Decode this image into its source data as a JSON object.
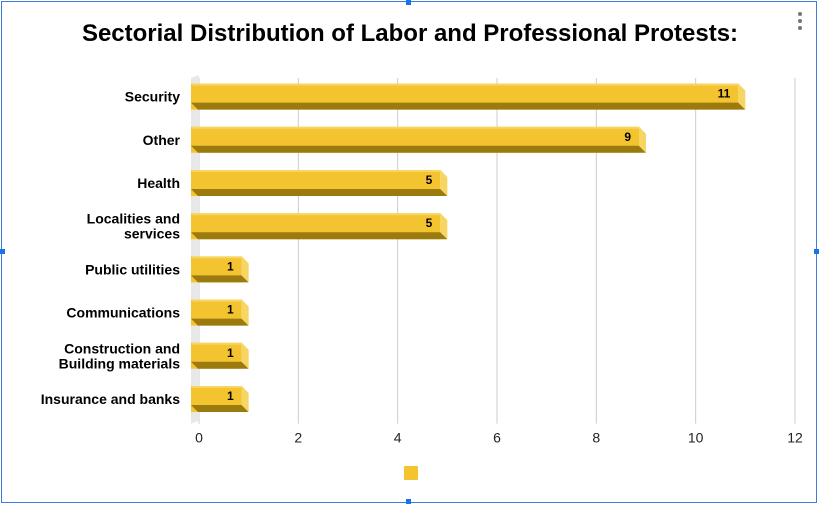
{
  "menu": {
    "icon": "more-vert-icon"
  },
  "colors": {
    "bar_front": "#f4c430",
    "bar_top": "#f7d563",
    "bar_side": "#9c7b0e",
    "grid": "#cccccc",
    "legend": "#f4c430"
  },
  "chart_data": {
    "type": "bar",
    "orientation": "horizontal",
    "title": "Sectorial Distribution of Labor and Professional Protests:",
    "categories": [
      [
        "Security"
      ],
      [
        "Other"
      ],
      [
        "Health"
      ],
      [
        "Localities and",
        "services"
      ],
      [
        "Public utilities"
      ],
      [
        "Communications"
      ],
      [
        "Construction and",
        "Building materials"
      ],
      [
        "Insurance and banks"
      ]
    ],
    "values": [
      11,
      9,
      5,
      5,
      1,
      1,
      1,
      1
    ],
    "data_labels": [
      "11",
      "9",
      "5",
      "5",
      "1",
      "1",
      "1",
      "1"
    ],
    "xlim": [
      0,
      12
    ],
    "x_ticks": [
      "0",
      "2",
      "4",
      "6",
      "8",
      "10",
      "12"
    ],
    "grid": true,
    "legend": {
      "position": "bottom",
      "entries": [
        ""
      ]
    }
  }
}
